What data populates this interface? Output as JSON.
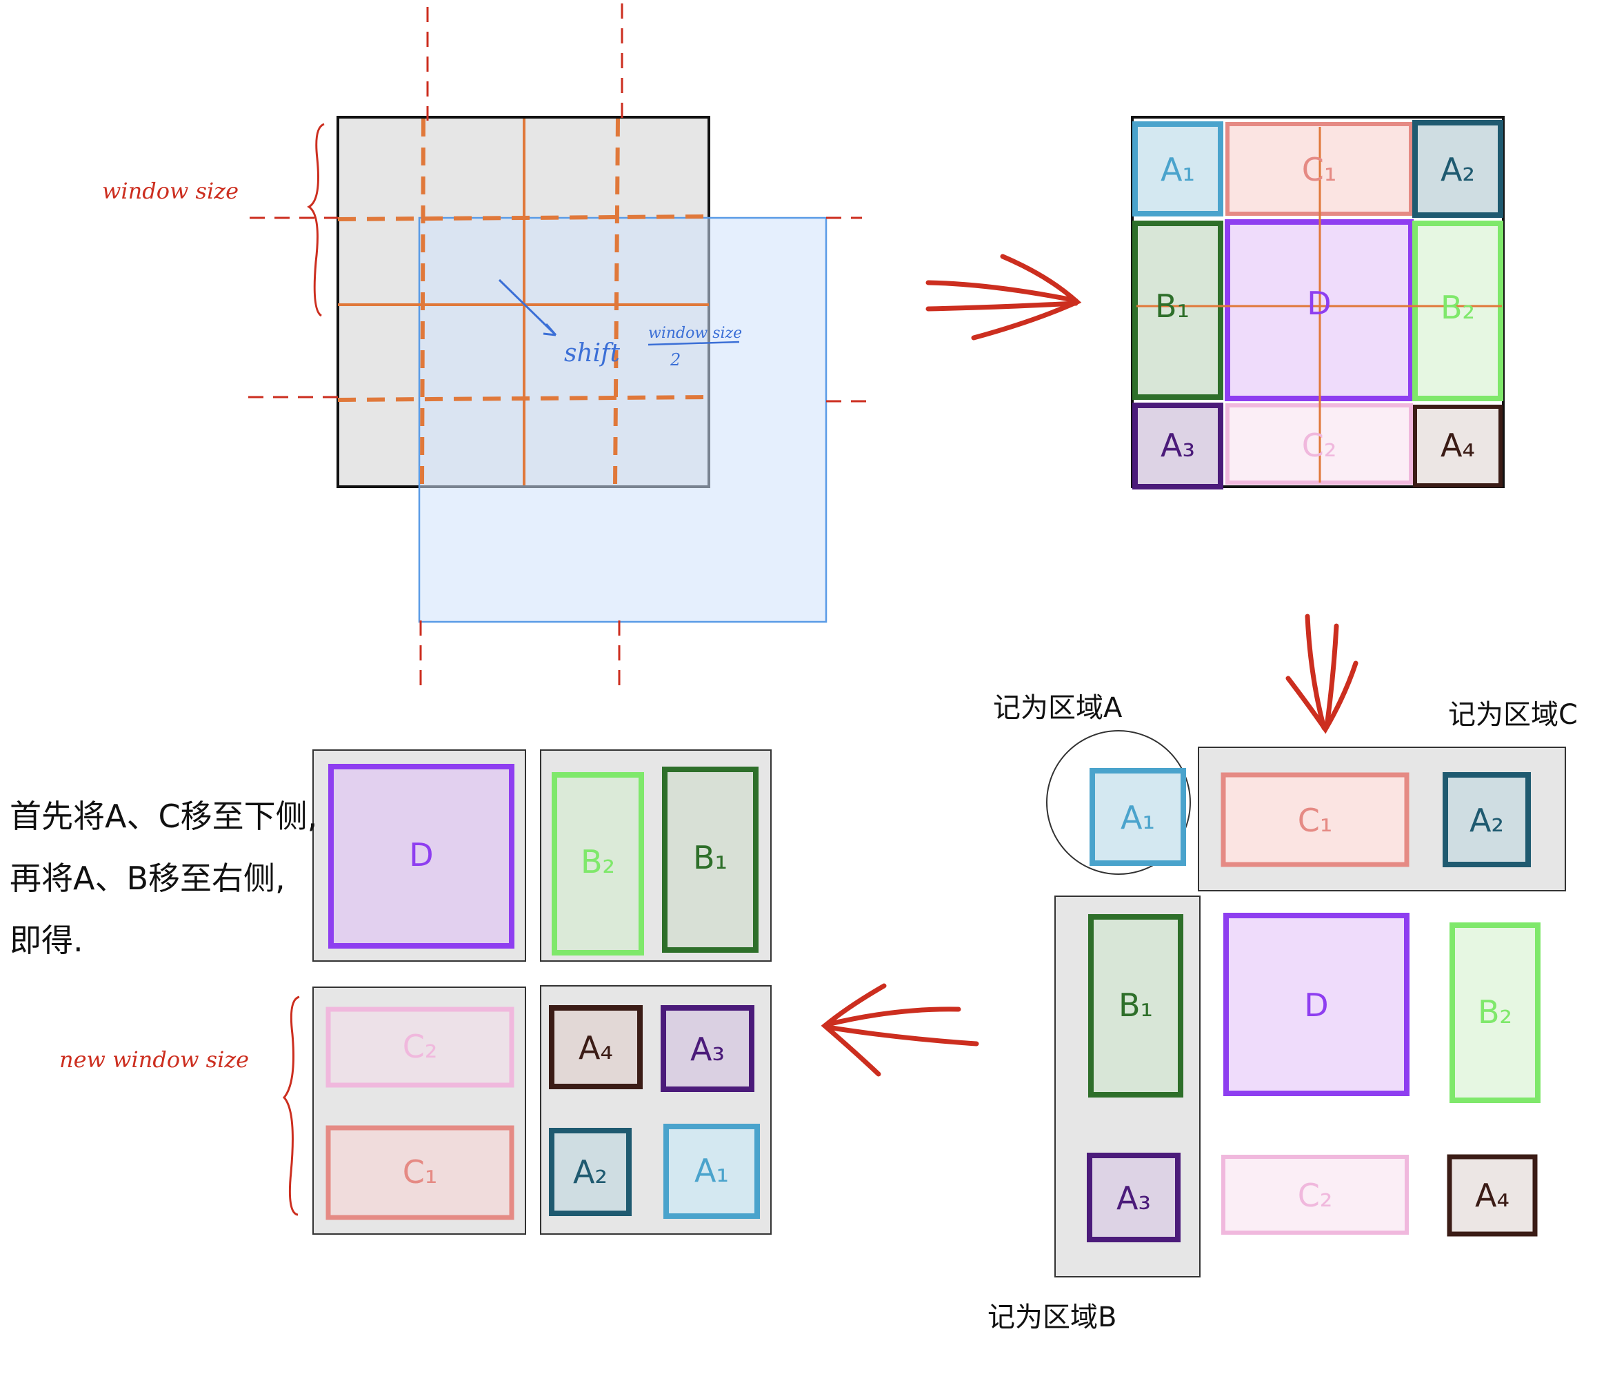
{
  "colors": {
    "grey_fill": "#e6e6e6",
    "blue_window": "#e4effd",
    "blue_window_stroke": "#5a9be6",
    "orange_line": "#e0783a",
    "red_annot": "#cc2e1f",
    "blue_annot": "#3b6fd6",
    "A1": "#4aa3cc",
    "A1_fill": "#d4e8f1",
    "C1": "#e58a84",
    "C1_fill": "#fbe4e2",
    "A2": "#1f5a70",
    "A2_fill": "#cfdde2",
    "B1": "#2e6f2a",
    "B1_fill": "#d8e6d7",
    "D": "#8e3ef0",
    "D_fill": "#efdcfb",
    "B2": "#7fe86b",
    "B2_fill": "#e6f7e2",
    "A3": "#4b1b7a",
    "A3_fill": "#ddd3e5",
    "C2": "#f0b8dd",
    "C2_fill": "#fbeef6",
    "A4": "#3b1c16",
    "A4_fill": "#ece6e4"
  },
  "panel1": {
    "window_size": "window size",
    "shift": "shift",
    "shift_numerator": "window size",
    "shift_denominator": "2"
  },
  "regions": {
    "A1": "A₁",
    "A2": "A₂",
    "A3": "A₃",
    "A4": "A₄",
    "B1": "B₁",
    "B2": "B₂",
    "C1": "C₁",
    "C2": "C₂",
    "D": "D"
  },
  "panel3": {
    "region_a": "记为区域A",
    "region_b": "记为区域B",
    "region_c": "记为区域C"
  },
  "panel4": {
    "note_line1": "首先将A、C移至下侧,",
    "note_line2": "再将A、B移至右侧,",
    "note_line3": "即得.",
    "new_window_size": "new window size"
  }
}
